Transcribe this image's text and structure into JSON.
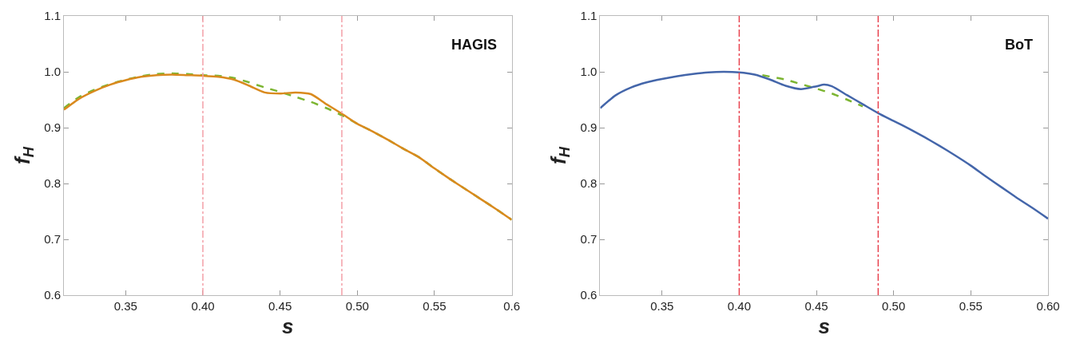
{
  "chart_data": [
    {
      "type": "line",
      "xlabel": "s",
      "ylabel": "f$_{H}$",
      "xlim": [
        0.31,
        0.6
      ],
      "ylim": [
        0.6,
        1.1
      ],
      "xticks": [
        {
          "value": 0.35,
          "label": "0.35"
        },
        {
          "value": 0.4,
          "label": "0.40"
        },
        {
          "value": 0.45,
          "label": "0.45"
        },
        {
          "value": 0.5,
          "label": "0.50"
        },
        {
          "value": 0.55,
          "label": "0.55"
        },
        {
          "value": 0.6,
          "label": "0.6"
        }
      ],
      "yticks": [
        0.6,
        0.7,
        0.8,
        0.9,
        {
          "value": 1.0,
          "label": "1.0"
        },
        1.1
      ],
      "annotations": [
        "HAGIS"
      ],
      "ref_lines": [
        {
          "axis": "x",
          "value": 0.4,
          "color": "#f4a0a8",
          "line_style": "dashdot"
        },
        {
          "axis": "x",
          "value": 0.49,
          "color": "#f4a0a8",
          "line_style": "dashdot"
        }
      ],
      "series": [
        {
          "color": "#7cb531",
          "line_style": "dashed",
          "x": [
            0.31,
            0.32,
            0.33,
            0.34,
            0.35,
            0.36,
            0.37,
            0.38,
            0.39,
            0.4,
            0.41,
            0.42,
            0.43,
            0.44,
            0.45,
            0.46,
            0.47,
            0.48,
            0.49,
            0.5,
            0.51,
            0.52,
            0.53,
            0.54,
            0.55,
            0.56,
            0.57,
            0.58,
            0.59,
            0.6
          ],
          "values": [
            0.935,
            0.955,
            0.968,
            0.978,
            0.986,
            0.992,
            0.996,
            0.997,
            0.996,
            0.994,
            0.993,
            0.989,
            0.981,
            0.972,
            0.964,
            0.955,
            0.946,
            0.935,
            0.922,
            0.907,
            0.893,
            0.878,
            0.862,
            0.847,
            0.827,
            0.808,
            0.79,
            0.772,
            0.754,
            0.735
          ]
        },
        {
          "color": "#d98a1e",
          "line_style": "solid",
          "x": [
            0.31,
            0.32,
            0.33,
            0.34,
            0.35,
            0.36,
            0.37,
            0.38,
            0.39,
            0.4,
            0.41,
            0.42,
            0.43,
            0.44,
            0.45,
            0.46,
            0.47,
            0.48,
            0.49,
            0.5,
            0.51,
            0.52,
            0.53,
            0.54,
            0.55,
            0.56,
            0.57,
            0.58,
            0.59,
            0.6
          ],
          "values": [
            0.932,
            0.952,
            0.966,
            0.977,
            0.985,
            0.991,
            0.994,
            0.995,
            0.994,
            0.993,
            0.991,
            0.986,
            0.975,
            0.963,
            0.961,
            0.963,
            0.96,
            0.942,
            0.925,
            0.907,
            0.893,
            0.878,
            0.862,
            0.847,
            0.827,
            0.808,
            0.79,
            0.772,
            0.754,
            0.735
          ]
        }
      ]
    },
    {
      "type": "line",
      "xlabel": "s",
      "ylabel": "f$_{H}$",
      "xlim": [
        0.31,
        0.6
      ],
      "ylim": [
        0.6,
        1.1
      ],
      "xticks": [
        {
          "value": 0.35,
          "label": "0.35"
        },
        {
          "value": 0.4,
          "label": "0.40"
        },
        {
          "value": 0.45,
          "label": "0.45"
        },
        {
          "value": 0.5,
          "label": "0.50"
        },
        {
          "value": 0.55,
          "label": "0.55"
        },
        {
          "value": 0.6,
          "label": "0.60"
        }
      ],
      "yticks": [
        0.6,
        0.7,
        0.8,
        0.9,
        {
          "value": 1.0,
          "label": "1.0"
        },
        1.1
      ],
      "annotations": [
        "BoT"
      ],
      "ref_lines": [
        {
          "axis": "x",
          "value": 0.4,
          "color": "#e8434f",
          "line_style": "dashdot"
        },
        {
          "axis": "x",
          "value": 0.49,
          "color": "#e8434f",
          "line_style": "dashdot"
        }
      ],
      "series": [
        {
          "color": "#7cb531",
          "line_style": "dashed",
          "x": [
            0.415,
            0.43,
            0.44,
            0.45,
            0.46,
            0.47,
            0.48
          ],
          "values": [
            0.994,
            0.986,
            0.978,
            0.97,
            0.961,
            0.95,
            0.938
          ]
        },
        {
          "color": "#4466aa",
          "line_style": "solid",
          "x": [
            0.31,
            0.32,
            0.33,
            0.34,
            0.35,
            0.36,
            0.37,
            0.38,
            0.39,
            0.4,
            0.41,
            0.42,
            0.43,
            0.44,
            0.45,
            0.455,
            0.46,
            0.47,
            0.48,
            0.49,
            0.5,
            0.51,
            0.52,
            0.53,
            0.54,
            0.55,
            0.56,
            0.57,
            0.58,
            0.59,
            0.6
          ],
          "values": [
            0.935,
            0.958,
            0.972,
            0.981,
            0.987,
            0.992,
            0.996,
            0.999,
            1.0,
            0.999,
            0.995,
            0.986,
            0.975,
            0.969,
            0.974,
            0.977,
            0.974,
            0.958,
            0.942,
            0.926,
            0.912,
            0.898,
            0.883,
            0.867,
            0.85,
            0.832,
            0.812,
            0.793,
            0.774,
            0.756,
            0.737
          ]
        }
      ]
    }
  ]
}
